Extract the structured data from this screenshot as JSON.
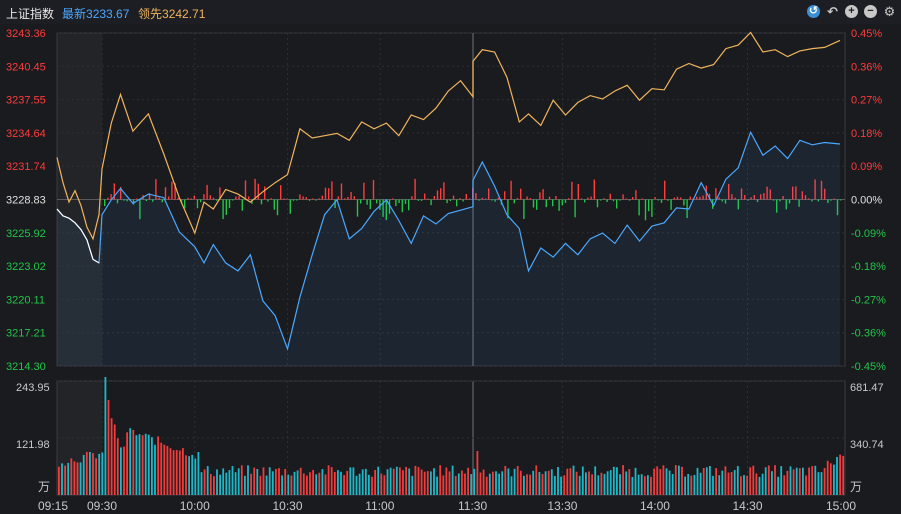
{
  "header": {
    "index_name": "上证指数",
    "latest_label": "最新",
    "latest_value": "3233.67",
    "leader_label": "领先",
    "leader_value": "3242.71"
  },
  "toolbar": {
    "icons": [
      "speed-icon",
      "undo-icon",
      "zoom-in-icon",
      "zoom-out-icon",
      "gear-icon"
    ]
  },
  "colors": {
    "up": "#ff3b3b",
    "down": "#21c548",
    "flat": "#e0e0e0",
    "index_line": "#4aa8ff",
    "leader_line": "#f0b45c",
    "volume_up": "#f23b3b",
    "volume_down": "#1fb8c8"
  },
  "chart_data": [
    {
      "type": "line",
      "name": "price",
      "ylim": [
        3214.3,
        3243.36
      ],
      "yticks_left": [
        "3243.36",
        "3240.45",
        "3237.55",
        "3234.64",
        "3231.74",
        "3228.83",
        "3225.92",
        "3223.02",
        "3220.11",
        "3217.21",
        "3214.30"
      ],
      "yticks_right": [
        "0.45%",
        "0.36%",
        "0.27%",
        "0.18%",
        "0.09%",
        "0.00%",
        "-0.09%",
        "-0.18%",
        "-0.27%",
        "-0.36%",
        "-0.45%"
      ],
      "xticks": [
        "09:15",
        "09:30",
        "10:00",
        "10:30",
        "11:00",
        "11:30",
        "13:30",
        "14:00",
        "14:30",
        "15:00"
      ],
      "series": [
        {
          "name": "最新",
          "points": [
            [
              "09:15",
              3228.0
            ],
            [
              "09:17",
              3227.4
            ],
            [
              "09:19",
              3227.2
            ],
            [
              "09:21",
              3226.8
            ],
            [
              "09:23",
              3226.2
            ],
            [
              "09:25",
              3225.3
            ],
            [
              "09:27",
              3223.6
            ],
            [
              "09:29",
              3223.3
            ],
            [
              "09:30",
              3227.5
            ],
            [
              "09:33",
              3228.8
            ],
            [
              "09:36",
              3229.8
            ],
            [
              "09:40",
              3228.5
            ],
            [
              "09:45",
              3229.3
            ],
            [
              "09:50",
              3229.0
            ],
            [
              "09:55",
              3226.0
            ],
            [
              "10:00",
              3224.7
            ],
            [
              "10:03",
              3223.3
            ],
            [
              "10:06",
              3224.9
            ],
            [
              "10:10",
              3223.3
            ],
            [
              "10:14",
              3222.6
            ],
            [
              "10:18",
              3224.0
            ],
            [
              "10:22",
              3220.0
            ],
            [
              "10:26",
              3218.7
            ],
            [
              "10:30",
              3215.8
            ],
            [
              "10:34",
              3220.3
            ],
            [
              "10:38",
              3224.0
            ],
            [
              "10:42",
              3227.5
            ],
            [
              "10:46",
              3228.8
            ],
            [
              "10:50",
              3225.4
            ],
            [
              "10:54",
              3226.3
            ],
            [
              "10:58",
              3227.8
            ],
            [
              "11:02",
              3228.8
            ],
            [
              "11:06",
              3227.0
            ],
            [
              "11:10",
              3225.0
            ],
            [
              "11:14",
              3227.4
            ],
            [
              "11:18",
              3226.7
            ],
            [
              "11:22",
              3227.6
            ],
            [
              "11:26",
              3227.9
            ],
            [
              "11:30",
              3228.2
            ],
            [
              "13:01",
              3230.5
            ],
            [
              "13:04",
              3232.1
            ],
            [
              "13:08",
              3230.0
            ],
            [
              "13:12",
              3227.5
            ],
            [
              "13:16",
              3226.3
            ],
            [
              "13:19",
              3222.6
            ],
            [
              "13:23",
              3224.6
            ],
            [
              "13:27",
              3223.8
            ],
            [
              "13:31",
              3225.0
            ],
            [
              "13:35",
              3224.0
            ],
            [
              "13:39",
              3225.4
            ],
            [
              "13:43",
              3225.9
            ],
            [
              "13:47",
              3225.0
            ],
            [
              "13:51",
              3226.6
            ],
            [
              "13:55",
              3225.2
            ],
            [
              "13:59",
              3226.5
            ],
            [
              "14:03",
              3226.8
            ],
            [
              "14:07",
              3228.1
            ],
            [
              "14:11",
              3228.0
            ],
            [
              "14:15",
              3230.3
            ],
            [
              "14:19",
              3228.3
            ],
            [
              "14:23",
              3230.6
            ],
            [
              "14:27",
              3231.6
            ],
            [
              "14:31",
              3234.7
            ],
            [
              "14:35",
              3232.7
            ],
            [
              "14:39",
              3233.5
            ],
            [
              "14:43",
              3232.4
            ],
            [
              "14:47",
              3234.0
            ],
            [
              "14:51",
              3233.6
            ],
            [
              "14:55",
              3233.8
            ],
            [
              "15:00",
              3233.67
            ]
          ]
        },
        {
          "name": "领先",
          "points": [
            [
              "09:15",
              3232.5
            ],
            [
              "09:17",
              3230.3
            ],
            [
              "09:19",
              3228.6
            ],
            [
              "09:21",
              3229.6
            ],
            [
              "09:23",
              3228.3
            ],
            [
              "09:25",
              3226.4
            ],
            [
              "09:27",
              3225.4
            ],
            [
              "09:29",
              3227.5
            ],
            [
              "09:30",
              3231.5
            ],
            [
              "09:33",
              3235.5
            ],
            [
              "09:36",
              3238.0
            ],
            [
              "09:40",
              3234.8
            ],
            [
              "09:45",
              3236.3
            ],
            [
              "09:50",
              3232.8
            ],
            [
              "09:55",
              3229.0
            ],
            [
              "10:00",
              3225.9
            ],
            [
              "10:03",
              3228.6
            ],
            [
              "10:06",
              3228.0
            ],
            [
              "10:10",
              3229.7
            ],
            [
              "10:14",
              3229.3
            ],
            [
              "10:18",
              3228.6
            ],
            [
              "10:22",
              3229.5
            ],
            [
              "10:26",
              3230.3
            ],
            [
              "10:30",
              3231.0
            ],
            [
              "10:34",
              3235.0
            ],
            [
              "10:38",
              3234.2
            ],
            [
              "10:42",
              3234.4
            ],
            [
              "10:46",
              3234.6
            ],
            [
              "10:50",
              3234.0
            ],
            [
              "10:54",
              3235.6
            ],
            [
              "10:58",
              3235.0
            ],
            [
              "11:02",
              3235.5
            ],
            [
              "11:06",
              3234.4
            ],
            [
              "11:10",
              3236.2
            ],
            [
              "11:14",
              3235.8
            ],
            [
              "11:18",
              3236.8
            ],
            [
              "11:22",
              3238.3
            ],
            [
              "11:26",
              3239.2
            ],
            [
              "11:30",
              3237.8
            ],
            [
              "13:01",
              3240.9
            ],
            [
              "13:04",
              3241.9
            ],
            [
              "13:08",
              3241.7
            ],
            [
              "13:12",
              3239.5
            ],
            [
              "13:16",
              3235.6
            ],
            [
              "13:19",
              3236.3
            ],
            [
              "13:23",
              3235.3
            ],
            [
              "13:27",
              3237.5
            ],
            [
              "13:31",
              3236.2
            ],
            [
              "13:35",
              3237.3
            ],
            [
              "13:39",
              3237.9
            ],
            [
              "13:43",
              3237.6
            ],
            [
              "13:47",
              3238.3
            ],
            [
              "13:51",
              3238.8
            ],
            [
              "13:55",
              3237.5
            ],
            [
              "13:59",
              3238.5
            ],
            [
              "14:03",
              3238.4
            ],
            [
              "14:07",
              3240.2
            ],
            [
              "14:11",
              3240.7
            ],
            [
              "14:15",
              3240.3
            ],
            [
              "14:19",
              3240.6
            ],
            [
              "14:23",
              3242.0
            ],
            [
              "14:27",
              3242.3
            ],
            [
              "14:31",
              3243.4
            ],
            [
              "14:35",
              3241.7
            ],
            [
              "14:39",
              3241.9
            ],
            [
              "14:43",
              3241.3
            ],
            [
              "14:47",
              3241.8
            ],
            [
              "14:51",
              3242.0
            ],
            [
              "14:55",
              3242.1
            ],
            [
              "15:00",
              3242.71
            ]
          ]
        }
      ]
    },
    {
      "type": "bar",
      "name": "volume",
      "unit_label": "万",
      "ylim_left": [
        0,
        243.95
      ],
      "yticks_left": [
        "243.95",
        "121.98"
      ],
      "ylim_right": [
        0,
        681.47
      ],
      "yticks_right": [
        "681.47",
        "340.74"
      ]
    }
  ]
}
